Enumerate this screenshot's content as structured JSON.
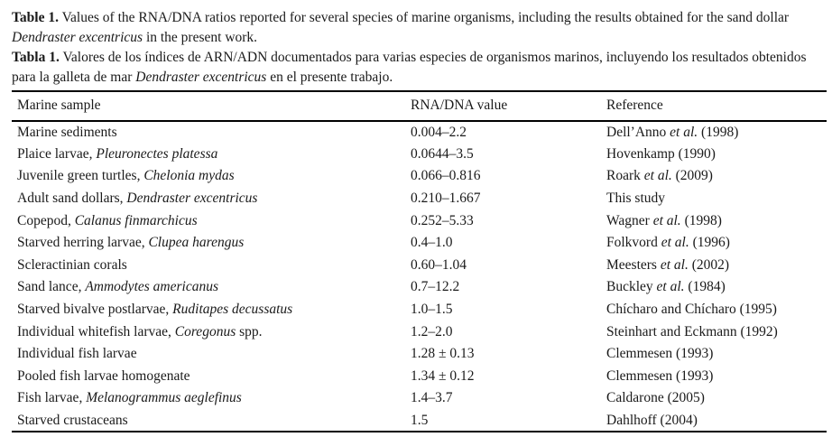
{
  "page": {
    "background": "#ffffff",
    "text_color": "#1a1a1a",
    "rule_color": "#000000"
  },
  "captions": {
    "en": {
      "label": "Table 1.",
      "before_species": " Values of the RNA/DNA ratios reported for several species of marine organisms, including the results obtained for the sand dollar ",
      "species": "Dendraster excentricus",
      "after_species": " in the present work."
    },
    "es": {
      "label": "Tabla 1.",
      "before_species": " Valores de los índices de ARN/ADN documentados para varias especies de organismos marinos, incluyendo los resultados obtenidos para la galleta de mar ",
      "species": "Dendraster excentricus",
      "after_species": " en el presente trabajo."
    }
  },
  "table": {
    "headers": [
      "Marine sample",
      "RNA/DNA value",
      "Reference"
    ],
    "rows": [
      {
        "sample": [
          {
            "text": "Marine sediments",
            "italic": false
          }
        ],
        "value": "0.004–2.2",
        "reference": [
          {
            "text": "Dell’Anno ",
            "italic": false
          },
          {
            "text": "et al.",
            "italic": true
          },
          {
            "text": " (1998)",
            "italic": false
          }
        ]
      },
      {
        "sample": [
          {
            "text": "Plaice larvae, ",
            "italic": false
          },
          {
            "text": "Pleuronectes platessa",
            "italic": true
          }
        ],
        "value": "0.0644–3.5",
        "reference": [
          {
            "text": "Hovenkamp (1990)",
            "italic": false
          }
        ]
      },
      {
        "sample": [
          {
            "text": "Juvenile green turtles, ",
            "italic": false
          },
          {
            "text": "Chelonia mydas",
            "italic": true
          }
        ],
        "value": "0.066–0.816",
        "reference": [
          {
            "text": "Roark ",
            "italic": false
          },
          {
            "text": "et al.",
            "italic": true
          },
          {
            "text": " (2009)",
            "italic": false
          }
        ]
      },
      {
        "sample": [
          {
            "text": "Adult sand dollars, ",
            "italic": false
          },
          {
            "text": "Dendraster excentricus",
            "italic": true
          }
        ],
        "value": "0.210–1.667",
        "reference": [
          {
            "text": "This study",
            "italic": false
          }
        ]
      },
      {
        "sample": [
          {
            "text": "Copepod, ",
            "italic": false
          },
          {
            "text": "Calanus finmarchicus",
            "italic": true
          }
        ],
        "value": "0.252–5.33",
        "reference": [
          {
            "text": "Wagner ",
            "italic": false
          },
          {
            "text": "et al.",
            "italic": true
          },
          {
            "text": " (1998)",
            "italic": false
          }
        ]
      },
      {
        "sample": [
          {
            "text": "Starved herring larvae, ",
            "italic": false
          },
          {
            "text": "Clupea harengus",
            "italic": true
          }
        ],
        "value": "0.4–1.0",
        "reference": [
          {
            "text": "Folkvord ",
            "italic": false
          },
          {
            "text": "et al.",
            "italic": true
          },
          {
            "text": " (1996)",
            "italic": false
          }
        ]
      },
      {
        "sample": [
          {
            "text": "Scleractinian corals",
            "italic": false
          }
        ],
        "value": "0.60–1.04",
        "reference": [
          {
            "text": "Meesters ",
            "italic": false
          },
          {
            "text": "et al.",
            "italic": true
          },
          {
            "text": " (2002)",
            "italic": false
          }
        ]
      },
      {
        "sample": [
          {
            "text": "Sand lance, ",
            "italic": false
          },
          {
            "text": "Ammodytes americanus",
            "italic": true
          }
        ],
        "value": "0.7–12.2",
        "reference": [
          {
            "text": "Buckley ",
            "italic": false
          },
          {
            "text": "et al.",
            "italic": true
          },
          {
            "text": " (1984)",
            "italic": false
          }
        ]
      },
      {
        "sample": [
          {
            "text": "Starved bivalve postlarvae, ",
            "italic": false
          },
          {
            "text": "Ruditapes decussatus",
            "italic": true
          }
        ],
        "value": "1.0–1.5",
        "reference": [
          {
            "text": "Chícharo and Chícharo (1995)",
            "italic": false
          }
        ]
      },
      {
        "sample": [
          {
            "text": "Individual whitefish larvae, ",
            "italic": false
          },
          {
            "text": "Coregonus",
            "italic": true
          },
          {
            "text": " spp.",
            "italic": false
          }
        ],
        "value": "1.2–2.0",
        "reference": [
          {
            "text": "Steinhart and Eckmann (1992)",
            "italic": false
          }
        ]
      },
      {
        "sample": [
          {
            "text": "Individual fish larvae",
            "italic": false
          }
        ],
        "value": "1.28 ± 0.13",
        "reference": [
          {
            "text": "Clemmesen (1993)",
            "italic": false
          }
        ]
      },
      {
        "sample": [
          {
            "text": "Pooled fish larvae homogenate",
            "italic": false
          }
        ],
        "value": "1.34 ± 0.12",
        "reference": [
          {
            "text": "Clemmesen (1993)",
            "italic": false
          }
        ]
      },
      {
        "sample": [
          {
            "text": "Fish larvae, ",
            "italic": false
          },
          {
            "text": "Melanogrammus aeglefinus",
            "italic": true
          }
        ],
        "value": "1.4–3.7",
        "reference": [
          {
            "text": "Caldarone (2005)",
            "italic": false
          }
        ]
      },
      {
        "sample": [
          {
            "text": "Starved crustaceans",
            "italic": false
          }
        ],
        "value": "1.5",
        "reference": [
          {
            "text": "Dahlhoff (2004)",
            "italic": false
          }
        ]
      }
    ]
  }
}
